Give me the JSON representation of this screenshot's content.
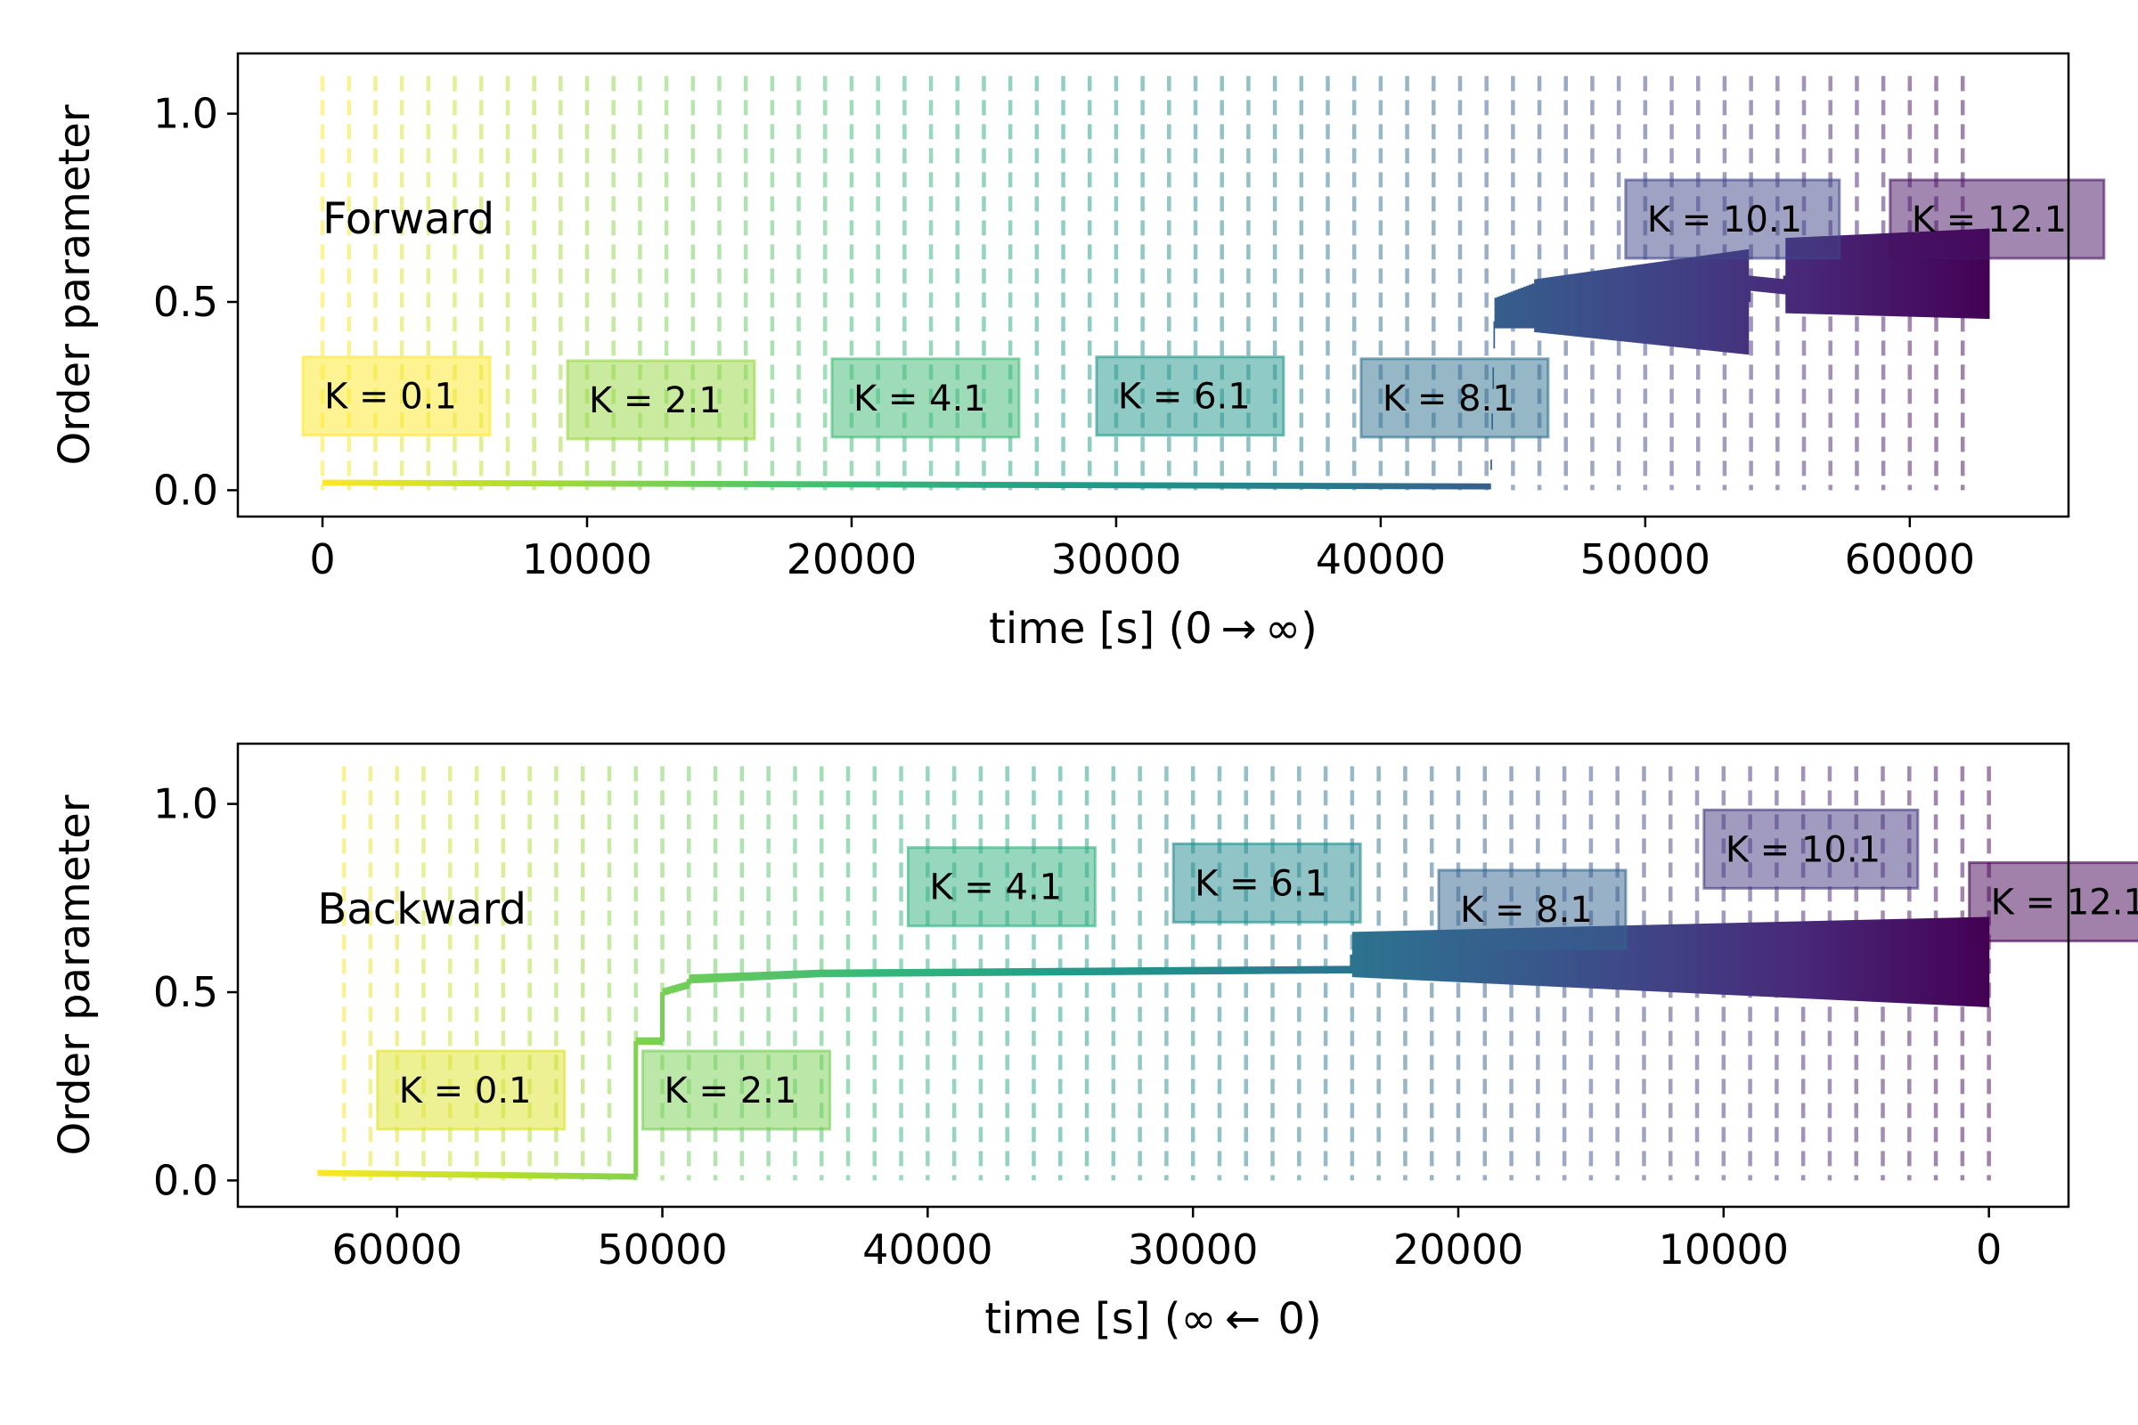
{
  "chart_data": [
    {
      "type": "line",
      "panel_label": "Forward",
      "xlabel": "time [s] (0 → ∞)",
      "ylabel": "Order parameter",
      "xlim": [
        -3200,
        66000
      ],
      "ylim": [
        -0.07,
        1.16
      ],
      "xticks": [
        0,
        10000,
        20000,
        30000,
        40000,
        50000,
        60000
      ],
      "xtick_labels": [
        "0",
        "10000",
        "20000",
        "30000",
        "40000",
        "50000",
        "60000"
      ],
      "yticks": [
        0.0,
        0.5,
        1.0
      ],
      "ytick_labels": [
        "0.0",
        "0.5",
        "1.0"
      ],
      "vline_range": [
        0,
        62000
      ],
      "vline_step": 1000,
      "k_labels": [
        {
          "text": "K = 0.1",
          "x": 0,
          "y": 0.25
        },
        {
          "text": "K = 2.1",
          "x": 10000,
          "y": 0.24
        },
        {
          "text": "K = 4.1",
          "x": 20000,
          "y": 0.245
        },
        {
          "text": "K = 6.1",
          "x": 30000,
          "y": 0.25
        },
        {
          "text": "K = 8.1",
          "x": 40000,
          "y": 0.245
        },
        {
          "text": "K = 10.1",
          "x": 50000,
          "y": 0.72
        },
        {
          "text": "K = 12.1",
          "x": 60000,
          "y": 0.72
        }
      ],
      "series": [
        {
          "x": [
            0,
            44150
          ],
          "center": [
            0.02,
            0.01
          ],
          "band": [
            0.008,
            0.008
          ]
        },
        {
          "x": [
            44150,
            44300
          ],
          "center": [
            0.01,
            0.47
          ],
          "band": [
            0.01,
            0.04
          ]
        },
        {
          "x": [
            44300,
            45800
          ],
          "center": [
            0.47,
            0.49
          ],
          "band": [
            0.04,
            0.06
          ]
        },
        {
          "x": [
            45800,
            53900
          ],
          "center": [
            0.49,
            0.5
          ],
          "band": [
            0.07,
            0.14
          ]
        },
        {
          "x": [
            53900,
            55300
          ],
          "center": [
            0.55,
            0.54
          ],
          "band": [
            0.02,
            0.02
          ]
        },
        {
          "x": [
            55300,
            63000
          ],
          "center": [
            0.57,
            0.575
          ],
          "band": [
            0.1,
            0.12
          ]
        }
      ]
    },
    {
      "type": "line",
      "panel_label": "Backward",
      "xlabel": "time [s] (∞ ←  0)",
      "ylabel": "Order parameter",
      "xlim": [
        66000,
        -3000
      ],
      "ylim": [
        -0.07,
        1.16
      ],
      "xticks": [
        60000,
        50000,
        40000,
        30000,
        20000,
        10000,
        0
      ],
      "xtick_labels": [
        "60000",
        "50000",
        "40000",
        "30000",
        "20000",
        "10000",
        "0"
      ],
      "yticks": [
        0.0,
        0.5,
        1.0
      ],
      "ytick_labels": [
        "0.0",
        "0.5",
        "1.0"
      ],
      "vline_range": [
        0,
        62000
      ],
      "vline_step": 1000,
      "k_labels": [
        {
          "text": "K = 0.1",
          "x": 60000,
          "y": 0.24
        },
        {
          "text": "K = 2.1",
          "x": 50000,
          "y": 0.24
        },
        {
          "text": "K = 4.1",
          "x": 40000,
          "y": 0.78
        },
        {
          "text": "K = 6.1",
          "x": 30000,
          "y": 0.79
        },
        {
          "text": "K = 8.1",
          "x": 20000,
          "y": 0.72
        },
        {
          "text": "K = 10.1",
          "x": 10000,
          "y": 0.88
        },
        {
          "text": "K = 12.1",
          "x": 0,
          "y": 0.74
        }
      ],
      "series": [
        {
          "x": [
            63000,
            51000
          ],
          "center": [
            0.02,
            0.01
          ],
          "band": [
            0.008,
            0.008
          ]
        },
        {
          "x": [
            51000,
            50000
          ],
          "center": [
            0.37,
            0.37
          ],
          "band": [
            0.01,
            0.01
          ]
        },
        {
          "x": [
            50000,
            49000
          ],
          "center": [
            0.5,
            0.52
          ],
          "band": [
            0.01,
            0.01
          ]
        },
        {
          "x": [
            49000,
            44000
          ],
          "center": [
            0.535,
            0.55
          ],
          "band": [
            0.012,
            0.01
          ]
        },
        {
          "x": [
            44000,
            24000
          ],
          "center": [
            0.55,
            0.56
          ],
          "band": [
            0.01,
            0.01
          ]
        },
        {
          "x": [
            24000,
            0
          ],
          "center": [
            0.6,
            0.58
          ],
          "band": [
            0.06,
            0.12
          ]
        }
      ]
    }
  ]
}
